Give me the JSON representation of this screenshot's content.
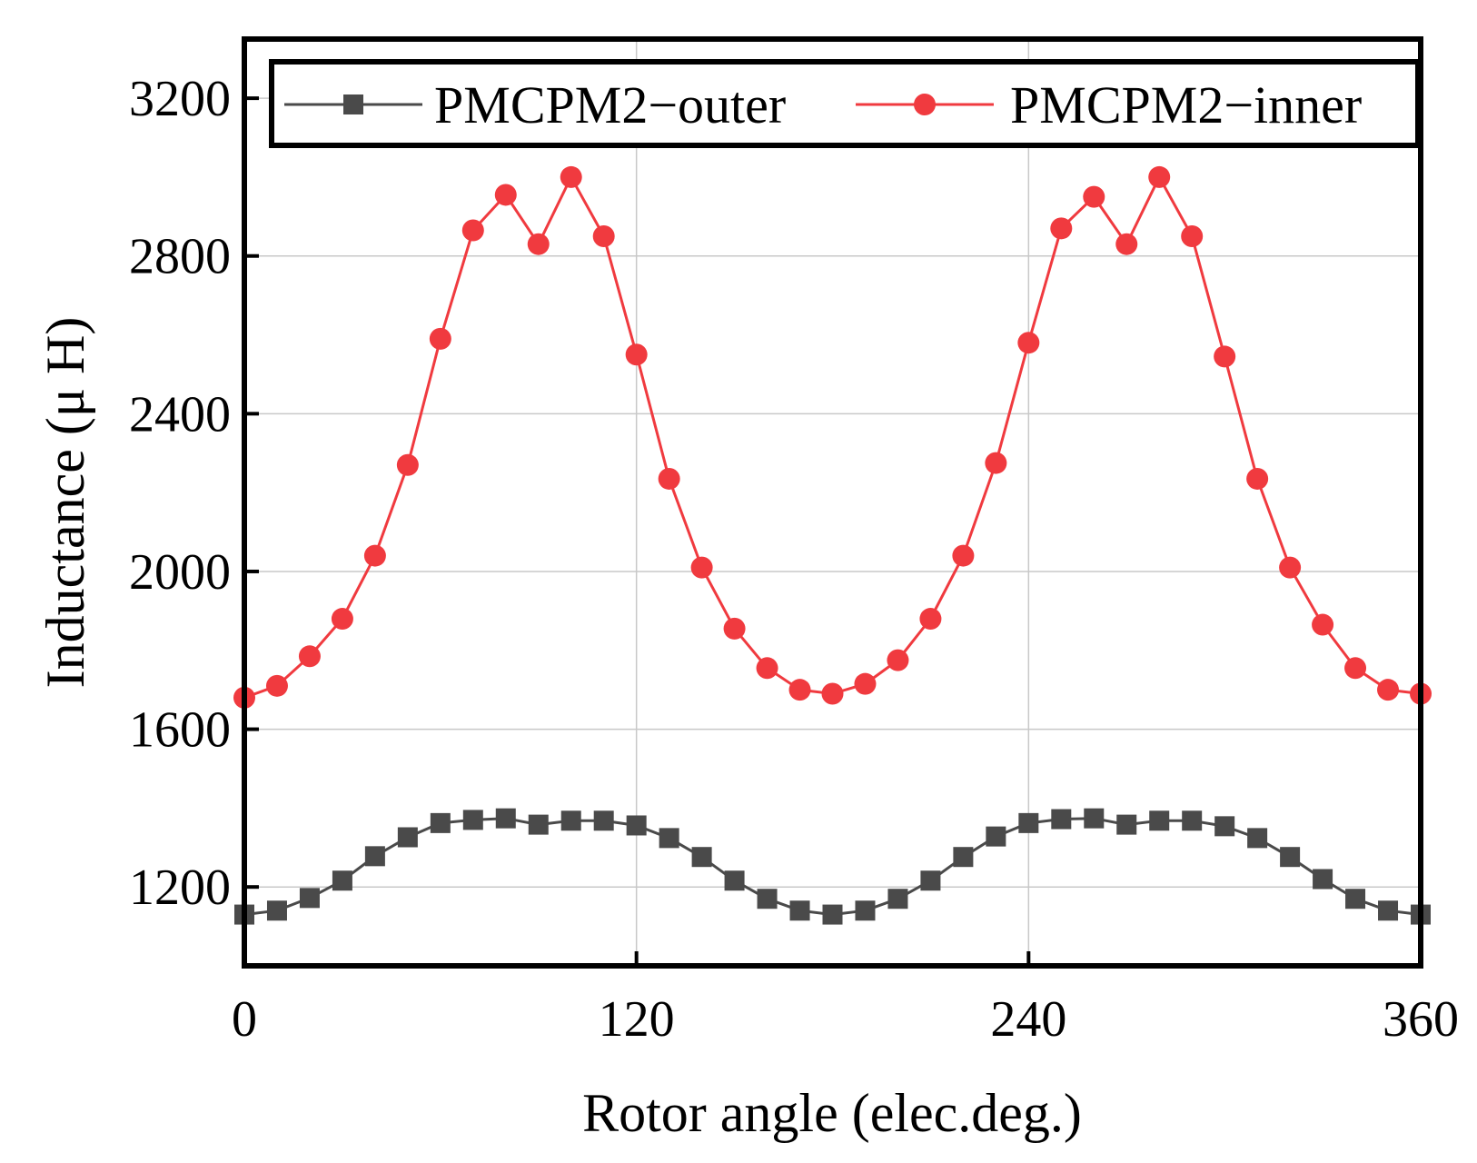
{
  "chart_data": {
    "type": "line",
    "xlabel": "Rotor angle (elec.deg.)",
    "ylabel": "Inductance (μ H)",
    "xlim": [
      0,
      360
    ],
    "ylim": [
      1000,
      3350
    ],
    "xticks": [
      0,
      120,
      240,
      360
    ],
    "yticks": [
      1200,
      1600,
      2000,
      2400,
      2800,
      3200
    ],
    "xtick_labels": [
      "0",
      "120",
      "240",
      "360"
    ],
    "ytick_labels": [
      "1200",
      "1600",
      "2000",
      "2400",
      "2800",
      "3200"
    ],
    "grid": true,
    "legend_position": "top",
    "x": [
      0,
      10,
      20,
      30,
      40,
      50,
      60,
      70,
      80,
      90,
      100,
      110,
      120,
      130,
      140,
      150,
      160,
      170,
      180,
      190,
      200,
      210,
      220,
      230,
      240,
      250,
      260,
      270,
      280,
      290,
      300,
      310,
      320,
      330,
      340,
      350,
      360
    ],
    "series": [
      {
        "name": "PMCPM2−outer",
        "color": "#4a4a4a",
        "marker": "square",
        "values": [
          1130,
          1140,
          1172,
          1216,
          1278,
          1326,
          1362,
          1370,
          1374,
          1358,
          1368,
          1368,
          1356,
          1324,
          1276,
          1216,
          1170,
          1140,
          1130,
          1140,
          1170,
          1216,
          1276,
          1328,
          1362,
          1372,
          1374,
          1358,
          1368,
          1368,
          1354,
          1324,
          1276,
          1220,
          1170,
          1140,
          1130
        ]
      },
      {
        "name": "PMCPM2−inner",
        "color": "#f03a3f",
        "marker": "circle",
        "values": [
          1680,
          1710,
          1785,
          1880,
          2040,
          2270,
          2590,
          2865,
          2955,
          2830,
          3000,
          2850,
          2550,
          2235,
          2010,
          1855,
          1755,
          1700,
          1690,
          1715,
          1775,
          1880,
          2040,
          2275,
          2580,
          2870,
          2950,
          2830,
          3000,
          2850,
          2545,
          2235,
          2010,
          1865,
          1755,
          1700,
          1690
        ]
      }
    ]
  }
}
